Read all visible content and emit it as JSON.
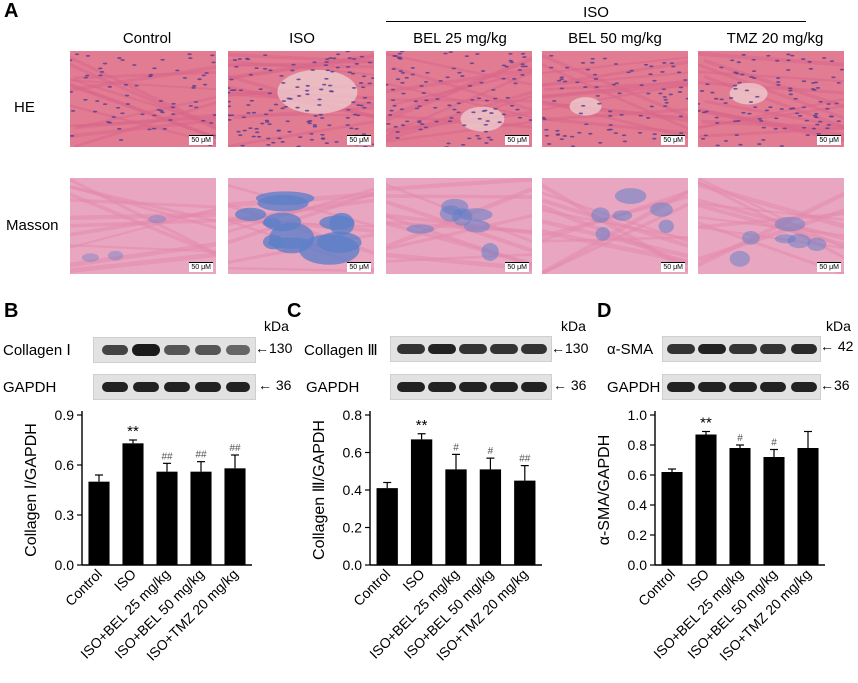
{
  "panel_a": {
    "letter": "A",
    "iso_header": "ISO",
    "columns": [
      "Control",
      "ISO",
      "BEL 25 mg/kg",
      "BEL 50 mg/kg",
      "TMZ 20 mg/kg"
    ],
    "rows": [
      "HE",
      "Masson"
    ],
    "scale_bar": "50 μM",
    "stain_colors": {
      "he_bg": "#e27c93",
      "he_nuclei": "#5b3f8f",
      "masson_bg": "#e9a6c0",
      "masson_collagen": "#5f7fc8"
    }
  },
  "blots": {
    "B": {
      "letter": "B",
      "protein_label": "Collagen Ⅰ",
      "protein_kda": "←130",
      "gapdh_label": "GAPDH",
      "gapdh_kda": "← 36",
      "kda_unit": "kDa"
    },
    "C": {
      "letter": "C",
      "protein_label": "Collagen Ⅲ",
      "protein_kda": "←130",
      "gapdh_label": "GAPDH",
      "gapdh_kda": "← 36",
      "kda_unit": "kDa"
    },
    "D": {
      "letter": "D",
      "protein_label": "α-SMA",
      "protein_kda": "← 42",
      "gapdh_label": "GAPDH",
      "gapdh_kda": "←36",
      "kda_unit": "kDa"
    }
  },
  "chart_data": [
    {
      "type": "bar",
      "categories": [
        "Control",
        "ISO",
        "ISO+BEL 25 mg/kg",
        "ISO+BEL 50 mg/kg",
        "ISO+TMZ 20 mg/kg"
      ],
      "values": [
        0.5,
        0.73,
        0.56,
        0.56,
        0.58
      ],
      "errors": [
        0.04,
        0.02,
        0.05,
        0.06,
        0.08
      ],
      "annotations": [
        "",
        "**",
        "##",
        "##",
        "##"
      ],
      "ylabel": "Collagen Ⅰ/GAPDH",
      "ylim": [
        0.0,
        0.9
      ],
      "yticks": [
        "0.0",
        "0.3",
        "0.6",
        "0.9"
      ]
    },
    {
      "type": "bar",
      "categories": [
        "Control",
        "ISO",
        "ISO+BEL 25 mg/kg",
        "ISO+BEL 50 mg/kg",
        "ISO+TMZ 20 mg/kg"
      ],
      "values": [
        0.41,
        0.67,
        0.51,
        0.51,
        0.45
      ],
      "errors": [
        0.03,
        0.03,
        0.08,
        0.06,
        0.08
      ],
      "annotations": [
        "",
        "**",
        "#",
        "#",
        "##"
      ],
      "ylabel": "Collagen Ⅲ/GAPDH",
      "ylim": [
        0.0,
        0.8
      ],
      "yticks": [
        "0.0",
        "0.2",
        "0.4",
        "0.6",
        "0.8"
      ]
    },
    {
      "type": "bar",
      "categories": [
        "Control",
        "ISO",
        "ISO+BEL 25 mg/kg",
        "ISO+BEL 50 mg/kg",
        "ISO+TMZ 20 mg/kg"
      ],
      "values": [
        0.62,
        0.87,
        0.78,
        0.72,
        0.78
      ],
      "errors": [
        0.02,
        0.02,
        0.02,
        0.05,
        0.11
      ],
      "annotations": [
        "",
        "**",
        "#",
        "#",
        ""
      ],
      "ylabel": "α-SMA/GAPDH",
      "ylim": [
        0.0,
        1.0
      ],
      "yticks": [
        "0.0",
        "0.2",
        "0.4",
        "0.6",
        "0.8",
        "1.0"
      ]
    }
  ]
}
